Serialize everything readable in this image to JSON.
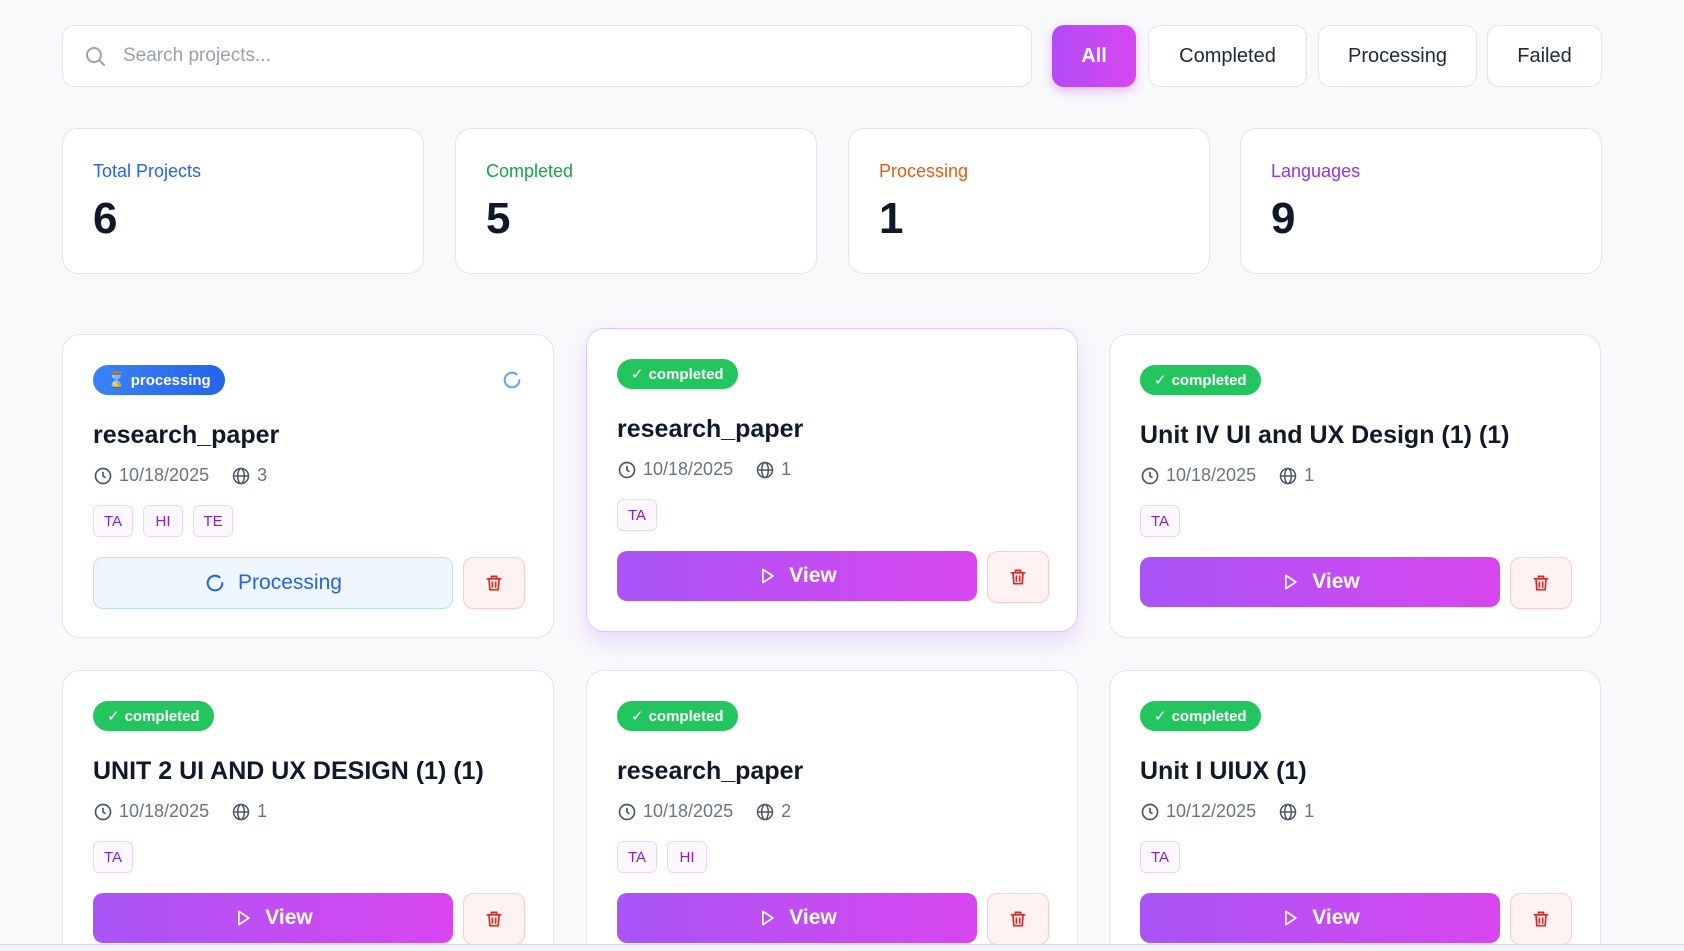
{
  "search": {
    "placeholder": "Search projects..."
  },
  "filters": {
    "all": "All",
    "completed": "Completed",
    "processing": "Processing",
    "failed": "Failed",
    "active": "All"
  },
  "stats": [
    {
      "label": "Total Projects",
      "value": "6",
      "color": "#2563eb"
    },
    {
      "label": "Completed",
      "value": "5",
      "color": "#16a34a"
    },
    {
      "label": "Processing",
      "value": "1",
      "color": "#ea580c"
    },
    {
      "label": "Languages",
      "value": "9",
      "color": "#9333ea"
    }
  ],
  "projects": [
    {
      "status": "processing",
      "title": "research_paper",
      "date": "10/18/2025",
      "lang_count": "3",
      "tags": [
        "TA",
        "HI",
        "TE"
      ],
      "action": "Processing"
    },
    {
      "status": "completed",
      "title": "research_paper",
      "date": "10/18/2025",
      "lang_count": "1",
      "tags": [
        "TA"
      ],
      "action": "View"
    },
    {
      "status": "completed",
      "title": "Unit IV UI and UX Design (1) (1)",
      "date": "10/18/2025",
      "lang_count": "1",
      "tags": [
        "TA"
      ],
      "action": "View"
    },
    {
      "status": "completed",
      "title": "UNIT 2 UI AND UX DESIGN (1) (1)",
      "date": "10/18/2025",
      "lang_count": "1",
      "tags": [
        "TA"
      ],
      "action": "View"
    },
    {
      "status": "completed",
      "title": "research_paper",
      "date": "10/18/2025",
      "lang_count": "2",
      "tags": [
        "TA",
        "HI"
      ],
      "action": "View"
    },
    {
      "status": "completed",
      "title": "Unit I UIUX (1)",
      "date": "10/12/2025",
      "lang_count": "1",
      "tags": [
        "TA"
      ],
      "action": "View"
    }
  ],
  "colors": {
    "accent_start": "#a855f7",
    "accent_end": "#d946ef",
    "completed_badge": "#22c55e",
    "processing_badge": "#3b82f6",
    "delete": "#dc2626"
  }
}
